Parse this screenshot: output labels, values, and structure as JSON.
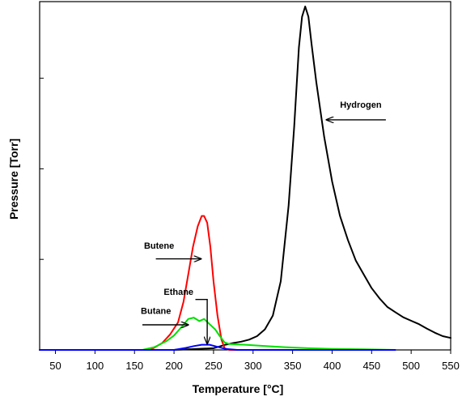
{
  "chart_data": {
    "type": "line",
    "title": "",
    "xlabel": "Temperature [°C]",
    "ylabel": "Pressure [Torr]",
    "xlim": [
      30,
      550
    ],
    "ylim": [
      0,
      1.0
    ],
    "x_ticks": [
      50,
      100,
      150,
      200,
      250,
      300,
      350,
      400,
      450,
      500,
      550
    ],
    "y_tick_labels_shown": false,
    "grid": false,
    "legend": "none (inline arrow annotations)",
    "series": [
      {
        "name": "Hydrogen",
        "color": "#000000",
        "x": [
          30,
          100,
          200,
          250,
          265,
          275,
          285,
          295,
          305,
          315,
          325,
          335,
          345,
          352,
          358,
          362,
          366,
          370,
          374,
          380,
          390,
          400,
          410,
          420,
          430,
          440,
          450,
          460,
          470,
          480,
          490,
          500,
          510,
          520,
          530,
          540,
          550
        ],
        "y": [
          0.0,
          0.0,
          0.0,
          0.005,
          0.015,
          0.02,
          0.024,
          0.03,
          0.04,
          0.06,
          0.1,
          0.2,
          0.42,
          0.65,
          0.88,
          0.97,
          1.0,
          0.97,
          0.89,
          0.78,
          0.62,
          0.49,
          0.39,
          0.32,
          0.26,
          0.22,
          0.18,
          0.15,
          0.125,
          0.11,
          0.095,
          0.085,
          0.075,
          0.062,
          0.05,
          0.04,
          0.035
        ]
      },
      {
        "name": "Butene",
        "color": "#ff0000",
        "x": [
          30,
          170,
          185,
          195,
          205,
          212,
          218,
          224,
          230,
          235,
          238,
          242,
          246,
          250,
          255,
          260,
          264,
          270,
          300,
          480
        ],
        "y": [
          0.0,
          0.0,
          0.02,
          0.045,
          0.08,
          0.14,
          0.22,
          0.3,
          0.36,
          0.39,
          0.39,
          0.37,
          0.3,
          0.2,
          0.1,
          0.03,
          0.005,
          0.0,
          0.0,
          0.0
        ]
      },
      {
        "name": "Butane",
        "color": "#00e000",
        "x": [
          30,
          160,
          175,
          190,
          200,
          210,
          218,
          225,
          232,
          238,
          245,
          252,
          258,
          264,
          270,
          290,
          310,
          340,
          370,
          400,
          440,
          480
        ],
        "y": [
          0.0,
          0.0,
          0.008,
          0.025,
          0.042,
          0.068,
          0.09,
          0.094,
          0.084,
          0.09,
          0.075,
          0.06,
          0.04,
          0.022,
          0.017,
          0.015,
          0.012,
          0.008,
          0.005,
          0.003,
          0.002,
          0.0
        ]
      },
      {
        "name": "Ethane",
        "color": "#0000ff",
        "x": [
          30,
          200,
          215,
          225,
          235,
          245,
          255,
          265,
          280,
          480
        ],
        "y": [
          0.0,
          0.0,
          0.006,
          0.011,
          0.015,
          0.015,
          0.009,
          0.003,
          0.0,
          0.0
        ]
      }
    ],
    "annotations": [
      {
        "label": "Hydrogen",
        "text_at": [
          410,
          0.705
        ],
        "tail": [
          468,
          0.67
        ],
        "head": [
          393,
          0.67
        ]
      },
      {
        "label": "Butene",
        "text_at": [
          162,
          0.295
        ],
        "tail": [
          177,
          0.265
        ],
        "head": [
          234,
          0.265
        ]
      },
      {
        "label": "Ethane",
        "text_at": [
          187,
          0.16
        ],
        "tail": [
          227,
          0.147
        ],
        "bend": [
          242,
          0.147
        ],
        "head": [
          242,
          0.018
        ]
      },
      {
        "label": "Butane",
        "text_at": [
          158,
          0.105
        ],
        "tail": [
          160,
          0.073
        ],
        "head": [
          218,
          0.073
        ]
      }
    ]
  }
}
